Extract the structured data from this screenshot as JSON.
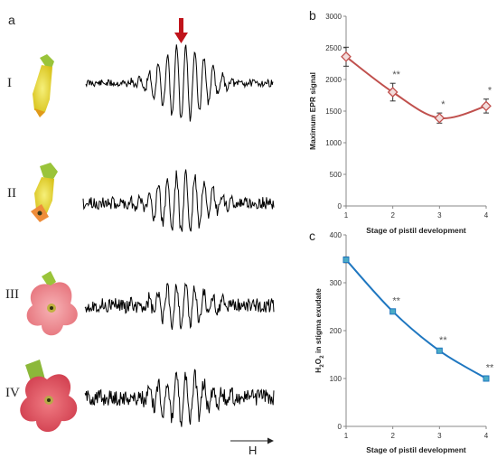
{
  "panel_a": {
    "letter": "a",
    "stages": [
      "I",
      "II",
      "III",
      "IV"
    ],
    "field_label": "H",
    "colors": {
      "trace": "#000000",
      "marker": "#c0141b"
    }
  },
  "chart_data": [
    {
      "panel": "b",
      "type": "line",
      "title": "",
      "xlabel": "Stage of pistil development",
      "ylabel": "Maximum EPR signal",
      "x": [
        1,
        2,
        3,
        4
      ],
      "values": [
        2360,
        1800,
        1390,
        1580
      ],
      "errors": [
        150,
        140,
        80,
        110
      ],
      "significance": [
        "",
        "**",
        "*",
        "*"
      ],
      "xlim": [
        1,
        4
      ],
      "ylim": [
        0,
        3000
      ],
      "yticks": [
        0,
        500,
        1000,
        1500,
        2000,
        2500,
        3000
      ],
      "xticks": [
        1,
        2,
        3,
        4
      ],
      "color": "#c0504d",
      "marker_fill": "#f2dcdb"
    },
    {
      "panel": "c",
      "type": "line",
      "title": "",
      "xlabel": "Stage of pistil development",
      "ylabel_parts": [
        "H",
        "2",
        "O",
        "2",
        " in stigma exudate"
      ],
      "x": [
        1,
        2,
        3,
        4
      ],
      "values": [
        348,
        240,
        158,
        100
      ],
      "errors": [
        6,
        4,
        4,
        5
      ],
      "significance": [
        "",
        "**",
        "**",
        "**"
      ],
      "xlim": [
        1,
        4
      ],
      "ylim": [
        0,
        400
      ],
      "yticks": [
        0,
        100,
        200,
        300,
        400
      ],
      "xticks": [
        1,
        2,
        3,
        4
      ],
      "color": "#1f77c0",
      "marker_fill": "#4bacc6"
    }
  ]
}
